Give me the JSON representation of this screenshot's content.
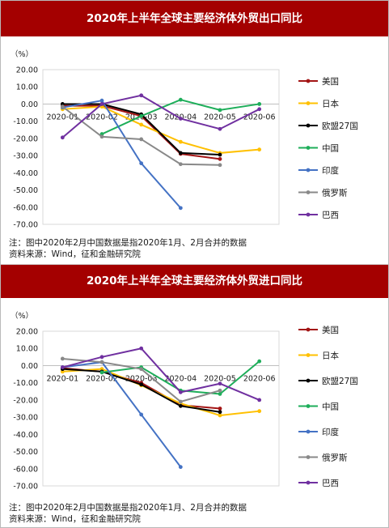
{
  "chart_data": [
    {
      "type": "line",
      "title": "2020年上半年全球主要经济体外贸出口同比",
      "unit_label": "（%）",
      "categories": [
        "2020-01",
        "2020-02",
        "2020-03",
        "2020-04",
        "2020-05",
        "2020-06"
      ],
      "ylim": [
        -70,
        20
      ],
      "y_ticks": [
        "20.00",
        "10.00",
        "0.00",
        "-10.00",
        "-20.00",
        "-30.00",
        "-40.00",
        "-50.00",
        "-60.00",
        "-70.00"
      ],
      "legend_position": "right",
      "grid": false,
      "series": [
        {
          "name": "美国",
          "color": "#a31515",
          "values": [
            -1.0,
            -1.0,
            -7.0,
            -29.0,
            -32.0,
            null
          ]
        },
        {
          "name": "日本",
          "color": "#ffc000",
          "values": [
            -3.0,
            -1.5,
            -12.0,
            -22.0,
            -28.5,
            -26.5
          ]
        },
        {
          "name": "欧盟27国",
          "color": "#000000",
          "values": [
            0.0,
            0.0,
            -6.0,
            -28.5,
            -29.5,
            null
          ]
        },
        {
          "name": "中国",
          "color": "#1eae5a",
          "values": [
            null,
            -17.5,
            -7.0,
            2.5,
            -3.5,
            0.0
          ]
        },
        {
          "name": "印度",
          "color": "#4472c4",
          "values": [
            -2.0,
            2.0,
            -34.5,
            -60.5,
            null,
            null
          ]
        },
        {
          "name": "俄罗斯",
          "color": "#898989",
          "values": [
            -1.5,
            -19.0,
            -20.5,
            -35.0,
            -35.5,
            null
          ]
        },
        {
          "name": "巴西",
          "color": "#7030a0",
          "values": [
            -19.5,
            0.0,
            5.0,
            -8.5,
            -14.5,
            -3.0
          ]
        }
      ],
      "note": "注：图中2020年2月中国数据是指2020年1月、2月合并的数据",
      "source": "资料来源：Wind，征和金融研究院"
    },
    {
      "type": "line",
      "title": "2020年上半年全球主要经济体外贸进口同比",
      "unit_label": "（%）",
      "categories": [
        "2020-01",
        "2020-02",
        "2020-03",
        "2020-04",
        "2020-05",
        "2020-06"
      ],
      "ylim": [
        -70,
        20
      ],
      "y_ticks": [
        "20.00",
        "10.00",
        "0.00",
        "-10.00",
        "-20.00",
        "-30.00",
        "-40.00",
        "-50.00",
        "-60.00",
        "-70.00"
      ],
      "legend_position": "right",
      "grid": false,
      "series": [
        {
          "name": "美国",
          "color": "#a31515",
          "values": [
            -1.5,
            -3.5,
            -10.0,
            -23.0,
            -25.0,
            null
          ]
        },
        {
          "name": "日本",
          "color": "#ffc000",
          "values": [
            -3.5,
            -2.0,
            -11.5,
            -22.0,
            -29.0,
            -26.5
          ]
        },
        {
          "name": "欧盟27国",
          "color": "#000000",
          "values": [
            -2.0,
            -3.5,
            -11.0,
            -23.5,
            -27.0,
            null
          ]
        },
        {
          "name": "中国",
          "color": "#1eae5a",
          "values": [
            null,
            -4.0,
            -1.0,
            -14.5,
            -16.5,
            2.5
          ]
        },
        {
          "name": "印度",
          "color": "#4472c4",
          "values": [
            -1.0,
            2.0,
            -28.5,
            -59.0,
            null,
            null
          ]
        },
        {
          "name": "俄罗斯",
          "color": "#898989",
          "values": [
            4.0,
            2.0,
            -2.0,
            -21.0,
            -14.5,
            null
          ]
        },
        {
          "name": "巴西",
          "color": "#7030a0",
          "values": [
            -1.0,
            5.0,
            10.0,
            -15.5,
            -10.5,
            -20.0
          ]
        }
      ],
      "note": "注：图中2020年2月中国数据是指2020年1月、2月合并的数据",
      "source": "资料来源：Wind，征和金融研究院"
    }
  ]
}
